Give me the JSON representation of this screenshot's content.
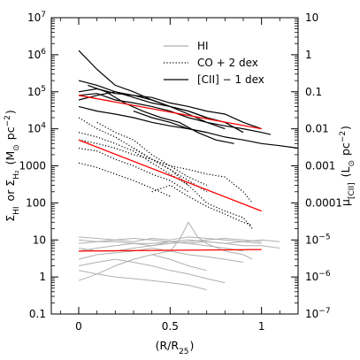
{
  "chart_data": {
    "type": "line",
    "title": "",
    "xlabel": "(R/R₂₅)",
    "ylabel": "ΣHI or ΣH₂ (M⊙ pc⁻²)",
    "ylabel_right": "μ[CII] (L⊙ pc⁻²)",
    "xlim": [
      -0.15,
      1.2
    ],
    "ylim": [
      0.1,
      10000000
    ],
    "yscale": "log",
    "grid": false,
    "legend_position": "top-right",
    "x_ticks": [
      {
        "value": 0,
        "label": "0"
      },
      {
        "value": 0.5,
        "label": "0.5"
      },
      {
        "value": 1,
        "label": "1"
      }
    ],
    "y_ticks": [
      {
        "value": 0.1,
        "label": "0.1",
        "exp": ""
      },
      {
        "value": 1,
        "label": "1",
        "exp": ""
      },
      {
        "value": 10,
        "label": "10",
        "exp": ""
      },
      {
        "value": 100,
        "label": "100",
        "exp": ""
      },
      {
        "value": 1000,
        "label": "1000",
        "exp": ""
      },
      {
        "value": 10000,
        "label": "10",
        "exp": "4"
      },
      {
        "value": 100000,
        "label": "10",
        "exp": "5"
      },
      {
        "value": 1000000,
        "label": "10",
        "exp": "6"
      },
      {
        "value": 10000000,
        "label": "10",
        "exp": "7"
      }
    ],
    "y2_ticks": [
      {
        "value": 0.1,
        "label": "10",
        "exp": "−7"
      },
      {
        "value": 1,
        "label": "10",
        "exp": "−6"
      },
      {
        "value": 10,
        "label": "10",
        "exp": "−5"
      },
      {
        "value": 100,
        "label": "0.0001",
        "exp": ""
      },
      {
        "value": 1000,
        "label": "0.001",
        "exp": ""
      },
      {
        "value": 10000,
        "label": "0.01",
        "exp": ""
      },
      {
        "value": 100000,
        "label": "0.1",
        "exp": ""
      },
      {
        "value": 1000000,
        "label": "1",
        "exp": ""
      },
      {
        "value": 10000000,
        "label": "10",
        "exp": ""
      }
    ],
    "legend": [
      {
        "label": "HI",
        "style": "solid",
        "color": "#b0b0b0"
      },
      {
        "label": "CO + 2 dex",
        "style": "dotted",
        "color": "#000000"
      },
      {
        "label": "[CII] − 1 dex",
        "style": "solid",
        "color": "#000000"
      }
    ],
    "series": [
      {
        "group": "HI",
        "style": "solid",
        "color": "#b0b0b0",
        "x": [
          0,
          0.1,
          0.2,
          0.3,
          0.4,
          0.5,
          0.6,
          0.7,
          0.8,
          0.9,
          1.0,
          1.1
        ],
        "y": [
          5,
          6,
          7,
          8,
          7,
          9,
          8,
          9,
          8,
          9,
          10,
          9
        ]
      },
      {
        "group": "HI",
        "style": "solid",
        "color": "#b0b0b0",
        "x": [
          0,
          0.1,
          0.2,
          0.3,
          0.4,
          0.5,
          0.6,
          0.7,
          0.8,
          0.9,
          1.0
        ],
        "y": [
          8,
          9,
          10,
          9,
          11,
          10,
          12,
          11,
          10,
          9,
          8
        ]
      },
      {
        "group": "HI",
        "style": "solid",
        "color": "#b0b0b0",
        "x": [
          0,
          0.1,
          0.2,
          0.3,
          0.4,
          0.5,
          0.6,
          0.7,
          0.8,
          0.9
        ],
        "y": [
          3,
          4,
          4.5,
          5,
          6,
          5,
          4,
          3.5,
          3,
          2.5
        ]
      },
      {
        "group": "HI",
        "style": "solid",
        "color": "#b0b0b0",
        "x": [
          0,
          0.1,
          0.2,
          0.3,
          0.4,
          0.5,
          0.6,
          0.7
        ],
        "y": [
          0.8,
          1.2,
          2,
          3,
          4,
          3,
          2,
          1.5
        ]
      },
      {
        "group": "HI",
        "style": "solid",
        "color": "#b0b0b0",
        "x": [
          0,
          0.1,
          0.2,
          0.3,
          0.4,
          0.5,
          0.6,
          0.7,
          0.8
        ],
        "y": [
          2,
          2.5,
          3,
          2.5,
          2,
          1.5,
          1.2,
          0.9,
          0.7
        ]
      },
      {
        "group": "HI",
        "style": "solid",
        "color": "#b0b0b0",
        "x": [
          0,
          0.1,
          0.2,
          0.3,
          0.4,
          0.5,
          0.6,
          0.7
        ],
        "y": [
          1.5,
          1.2,
          1,
          0.9,
          0.8,
          0.7,
          0.6,
          0.45
        ]
      },
      {
        "group": "HI",
        "style": "solid",
        "color": "#b0b0b0",
        "x": [
          0,
          0.1,
          0.2,
          0.3,
          0.4,
          0.5,
          0.6,
          0.7,
          0.8,
          0.9,
          1.0,
          1.1
        ],
        "y": [
          10,
          9,
          9,
          8,
          8,
          9,
          10,
          9,
          8,
          7,
          7,
          6
        ]
      },
      {
        "group": "HI",
        "style": "solid",
        "color": "#b0b0b0",
        "x": [
          0,
          0.1,
          0.2,
          0.3,
          0.4,
          0.5,
          0.6,
          0.7,
          0.8,
          0.9,
          1.0
        ],
        "y": [
          6,
          5,
          5,
          6,
          7,
          8,
          9,
          10,
          11,
          10,
          9
        ]
      },
      {
        "group": "HI",
        "style": "solid",
        "color": "#b0b0b0",
        "x": [
          0.4,
          0.5,
          0.55,
          0.6,
          0.65,
          0.7,
          0.8,
          0.9,
          0.95
        ],
        "y": [
          4,
          5,
          10,
          30,
          12,
          8,
          5,
          4,
          3
        ]
      },
      {
        "group": "HI",
        "style": "solid",
        "color": "#b0b0b0",
        "x": [
          0,
          0.1,
          0.2,
          0.3,
          0.4,
          0.5,
          0.6,
          0.7,
          0.8,
          0.9
        ],
        "y": [
          12,
          11,
          10,
          11,
          10,
          9,
          8,
          7,
          6,
          5
        ]
      },
      {
        "group": "CO + 2 dex",
        "style": "dotted",
        "color": "#000000",
        "x": [
          0,
          0.1,
          0.2,
          0.3,
          0.4,
          0.5,
          0.6,
          0.7
        ],
        "y": [
          20000,
          10000,
          6000,
          3000,
          1500,
          800,
          400,
          200
        ]
      },
      {
        "group": "CO + 2 dex",
        "style": "dotted",
        "color": "#000000",
        "x": [
          0,
          0.1,
          0.2,
          0.3,
          0.4,
          0.5,
          0.6
        ],
        "y": [
          8000,
          6000,
          4000,
          2500,
          1200,
          600,
          300
        ]
      },
      {
        "group": "CO + 2 dex",
        "style": "dotted",
        "color": "#000000",
        "x": [
          0,
          0.1,
          0.2,
          0.3,
          0.4,
          0.5,
          0.6,
          0.7,
          0.8,
          0.9,
          0.95
        ],
        "y": [
          5000,
          4000,
          3000,
          2000,
          1500,
          1000,
          800,
          600,
          500,
          200,
          100
        ]
      },
      {
        "group": "CO + 2 dex",
        "style": "dotted",
        "color": "#000000",
        "x": [
          0,
          0.1,
          0.2,
          0.3,
          0.4,
          0.5,
          0.6
        ],
        "y": [
          3000,
          2500,
          1500,
          1000,
          600,
          400,
          200
        ]
      },
      {
        "group": "CO + 2 dex",
        "style": "dotted",
        "color": "#000000",
        "x": [
          0,
          0.1,
          0.2,
          0.3,
          0.4,
          0.5
        ],
        "y": [
          1200,
          900,
          600,
          400,
          250,
          150
        ]
      },
      {
        "group": "CO + 2 dex",
        "style": "dotted",
        "color": "#000000",
        "x": [
          0.1,
          0.2,
          0.3,
          0.4,
          0.5,
          0.6,
          0.7
        ],
        "y": [
          15000,
          8000,
          5000,
          2000,
          1000,
          500,
          300
        ]
      },
      {
        "group": "CO + 2 dex",
        "style": "dotted",
        "color": "#000000",
        "x": [
          0.3,
          0.4,
          0.5,
          0.6,
          0.7,
          0.8,
          0.9,
          0.95
        ],
        "y": [
          3000,
          1500,
          800,
          300,
          100,
          60,
          40,
          20
        ]
      },
      {
        "group": "CO + 2 dex",
        "style": "dotted",
        "color": "#000000",
        "x": [
          0.4,
          0.5,
          0.6,
          0.7,
          0.8,
          0.9,
          0.95
        ],
        "y": [
          200,
          300,
          150,
          80,
          50,
          30,
          25
        ]
      },
      {
        "group": "[CII] − 1 dex",
        "style": "solid",
        "color": "#000000",
        "x": [
          0,
          0.1,
          0.2,
          0.3,
          0.4,
          0.5,
          0.6,
          0.7
        ],
        "y": [
          1300000,
          400000,
          150000,
          100000,
          60000,
          40000,
          30000,
          20000
        ]
      },
      {
        "group": "[CII] − 1 dex",
        "style": "solid",
        "color": "#000000",
        "x": [
          0,
          0.1,
          0.2,
          0.3,
          0.4,
          0.5,
          0.6,
          0.7,
          0.8,
          0.9,
          1.0
        ],
        "y": [
          200000,
          150000,
          100000,
          80000,
          70000,
          50000,
          40000,
          30000,
          25000,
          15000,
          10000
        ]
      },
      {
        "group": "[CII] − 1 dex",
        "style": "solid",
        "color": "#000000",
        "x": [
          0,
          0.1,
          0.2,
          0.3,
          0.4,
          0.5,
          0.6,
          0.7,
          0.8,
          0.9
        ],
        "y": [
          100000,
          120000,
          90000,
          80000,
          60000,
          40000,
          30000,
          20000,
          15000,
          8000
        ]
      },
      {
        "group": "[CII] − 1 dex",
        "style": "solid",
        "color": "#000000",
        "x": [
          0,
          0.1,
          0.2,
          0.3,
          0.4,
          0.5,
          0.6,
          0.7,
          0.8
        ],
        "y": [
          60000,
          80000,
          100000,
          70000,
          50000,
          40000,
          25000,
          15000,
          10000
        ]
      },
      {
        "group": "[CII] − 1 dex",
        "style": "solid",
        "color": "#000000",
        "x": [
          0,
          0.1,
          0.2,
          0.3,
          0.4,
          0.5,
          0.6,
          0.7
        ],
        "y": [
          40000,
          30000,
          25000,
          20000,
          15000,
          12000,
          10000,
          8000
        ]
      },
      {
        "group": "[CII] − 1 dex",
        "style": "solid",
        "color": "#000000",
        "x": [
          0.05,
          0.15,
          0.25,
          0.35,
          0.45,
          0.55,
          0.65,
          0.75,
          0.85
        ],
        "y": [
          150000,
          100000,
          50000,
          30000,
          20000,
          15000,
          8000,
          5000,
          4000
        ]
      },
      {
        "group": "[CII] − 1 dex",
        "style": "solid",
        "color": "#000000",
        "x": [
          0.3,
          0.4,
          0.5,
          0.6,
          0.7,
          0.8,
          0.9,
          1.0,
          1.1,
          1.2
        ],
        "y": [
          30000,
          20000,
          15000,
          10000,
          8000,
          6000,
          5000,
          4000,
          3500,
          3000
        ]
      },
      {
        "group": "[CII] − 1 dex",
        "style": "solid",
        "color": "#000000",
        "x": [
          0,
          0.1,
          0.2,
          0.3,
          0.4,
          0.5,
          0.6,
          0.7,
          0.8,
          0.9,
          1.0,
          1.05
        ],
        "y": [
          80000,
          90000,
          60000,
          50000,
          40000,
          30000,
          20000,
          15000,
          12000,
          10000,
          8000,
          7000
        ]
      }
    ],
    "fits": [
      {
        "name": "[CII] fit",
        "color": "#ff0000",
        "x": [
          0,
          1.0
        ],
        "y": [
          80000,
          10000
        ]
      },
      {
        "name": "CO fit",
        "color": "#ff0000",
        "x": [
          0,
          1.0
        ],
        "y": [
          5000,
          60
        ]
      },
      {
        "name": "HI fit",
        "color": "#ff0000",
        "x": [
          0,
          1.0
        ],
        "y": [
          5,
          5.5
        ]
      }
    ]
  }
}
